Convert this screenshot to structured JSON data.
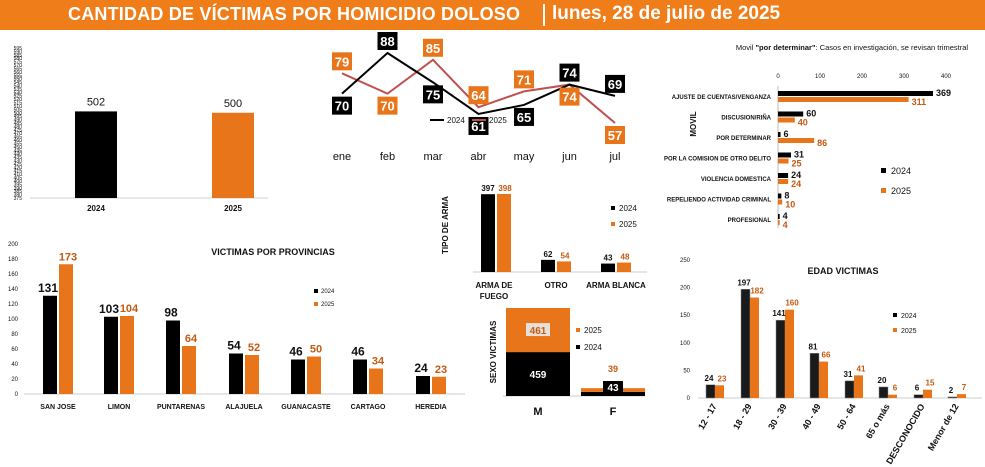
{
  "header": {
    "title": "CANTIDAD DE VÍCTIMAS POR HOMICIDIO DOLOSO",
    "date": "lunes, 28 de julio de 2025"
  },
  "colors": {
    "y2024": "#000000",
    "y2025": "#e8751a",
    "line2025": "#c0504d",
    "banner": "#ef7d1a"
  },
  "chart_data": [
    {
      "id": "totals",
      "type": "bar",
      "categories": [
        "2024",
        "2025"
      ],
      "values": [
        502,
        500
      ],
      "ylim": [
        375,
        595
      ],
      "yticks": [
        "595",
        "590",
        "585",
        "580",
        "575",
        "570",
        "565",
        "560",
        "555",
        "550",
        "545",
        "540",
        "535",
        "530",
        "525",
        "520",
        "515",
        "510",
        "505",
        "500",
        "495",
        "490",
        "485",
        "480",
        "475",
        "470",
        "465",
        "460",
        "455",
        "450",
        "445",
        "440",
        "435",
        "430",
        "425",
        "420",
        "415",
        "410",
        "405",
        "400",
        "395",
        "390",
        "385",
        "380",
        "375"
      ],
      "colors": [
        "#000000",
        "#e8751a"
      ]
    },
    {
      "id": "monthly",
      "type": "line",
      "categories": [
        "ene",
        "feb",
        "mar",
        "abr",
        "may",
        "jun",
        "jul"
      ],
      "series": [
        {
          "name": "2024",
          "values": [
            70,
            88,
            75,
            61,
            65,
            74,
            69
          ]
        },
        {
          "name": "2025",
          "values": [
            79,
            70,
            85,
            64,
            71,
            74,
            57
          ]
        }
      ],
      "legend": [
        "2024",
        "2025"
      ]
    },
    {
      "id": "movil",
      "type": "bar",
      "orientation": "horizontal",
      "title": "Movil \"por determinar\": Casos en investigación, se revisan trimestral",
      "title_prefix": "Movil ",
      "title_bold": "\"por determinar\"",
      "title_suffix": ": Casos en investigación, se revisan trimestral",
      "axis_label": "MOVIL",
      "xticks": [
        "0",
        "100",
        "200",
        "300",
        "400"
      ],
      "xlim": [
        0,
        400
      ],
      "categories": [
        "AJUSTE DE CUENTAS/VENGANZA",
        "DISCUSION/RIÑA",
        "POR DETERMINAR",
        "POR LA COMISION DE OTRO DELITO",
        "VIOLENCIA DOMESTICA",
        "REPELIENDO ACTIVIDAD CRIMINAL",
        "PROFESIONAL"
      ],
      "series": [
        {
          "name": "2024",
          "values": [
            369,
            60,
            6,
            31,
            24,
            8,
            4
          ]
        },
        {
          "name": "2025",
          "values": [
            311,
            40,
            86,
            25,
            24,
            10,
            4
          ]
        }
      ],
      "legend": [
        "2024",
        "2025"
      ]
    },
    {
      "id": "provincias",
      "type": "bar",
      "title": "VICTIMAS POR PROVINCIAS",
      "categories": [
        "SAN JOSE",
        "LIMON",
        "PUNTARENAS",
        "ALAJUELA",
        "GUANACASTE",
        "CARTAGO",
        "HEREDIA"
      ],
      "series": [
        {
          "name": "2024",
          "values": [
            131,
            103,
            98,
            54,
            46,
            46,
            24
          ]
        },
        {
          "name": "2025",
          "values": [
            173,
            104,
            64,
            52,
            50,
            34,
            23
          ]
        }
      ],
      "ylim": [
        0,
        200
      ],
      "yticks": [
        "200",
        "180",
        "160",
        "140",
        "120",
        "100",
        "80",
        "60",
        "40",
        "20",
        "0"
      ],
      "legend": [
        "2024",
        "2025"
      ]
    },
    {
      "id": "arma",
      "type": "bar",
      "axis_label": "TIPO DE ARMA",
      "categories": [
        "ARMA DE FUEGO",
        "OTRO",
        "ARMA BLANCA"
      ],
      "series": [
        {
          "name": "2024",
          "values": [
            397,
            62,
            43
          ]
        },
        {
          "name": "2025",
          "values": [
            398,
            54,
            48
          ]
        }
      ],
      "legend": [
        "2024",
        "2025"
      ]
    },
    {
      "id": "sexo",
      "type": "bar",
      "stacked": true,
      "axis_label": "SEXO VICTIMAS",
      "categories": [
        "M",
        "F"
      ],
      "series": [
        {
          "name": "2024",
          "values": [
            459,
            43
          ]
        },
        {
          "name": "2025",
          "values": [
            461,
            39
          ]
        }
      ],
      "legend": [
        "2025",
        "2024"
      ]
    },
    {
      "id": "edad",
      "type": "bar",
      "title": "EDAD VICTIMAS",
      "categories": [
        "12 - 17",
        "18 - 29",
        "30 - 39",
        "40 - 49",
        "50 - 64",
        "65 o más",
        "DESCONOCIDO",
        "Menor de 12"
      ],
      "series": [
        {
          "name": "2024",
          "values": [
            24,
            197,
            141,
            81,
            31,
            20,
            6,
            2
          ]
        },
        {
          "name": "2025",
          "values": [
            23,
            182,
            160,
            66,
            41,
            6,
            15,
            7
          ]
        }
      ],
      "ylim": [
        0,
        250
      ],
      "yticks": [
        "250",
        "200",
        "150",
        "100",
        "50",
        "0"
      ],
      "legend": [
        "2024",
        "2025"
      ]
    }
  ]
}
